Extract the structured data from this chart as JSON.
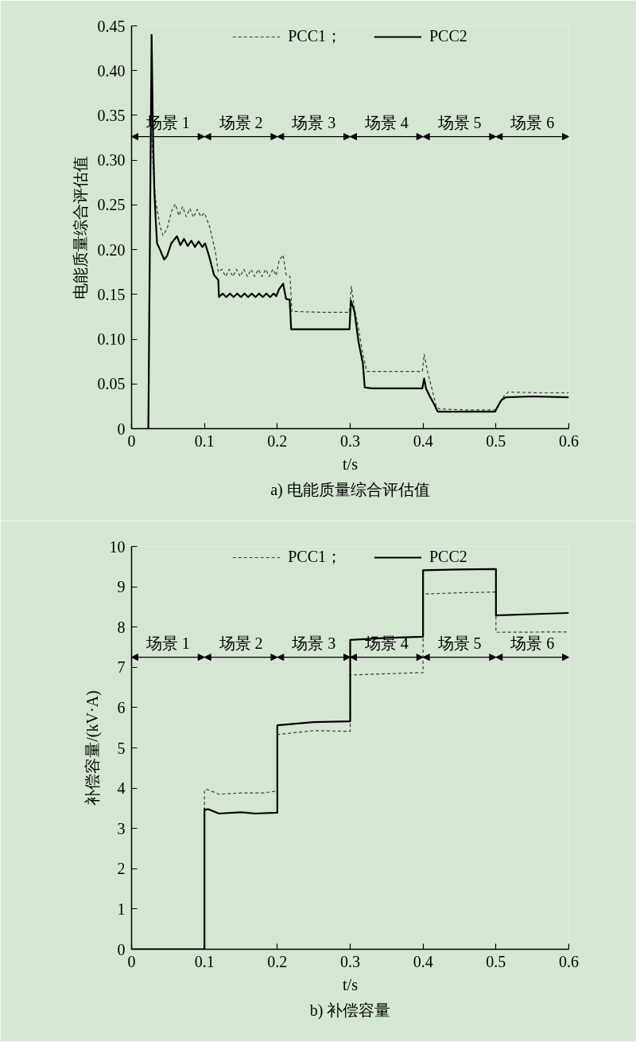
{
  "chart_data": [
    {
      "type": "line",
      "title": "a) 电能质量综合评估值",
      "xlabel": "t/s",
      "ylabel": "电能质量综合评估值",
      "legend": "top",
      "xlim": [
        0,
        0.6
      ],
      "xticks": [
        0,
        0.1,
        0.2,
        0.3,
        0.4,
        0.5,
        0.6
      ],
      "ylim": [
        0,
        0.45
      ],
      "yticks": [
        0,
        0.05,
        {
          "value": 0.1,
          "label": "0.10"
        },
        0.15,
        {
          "value": 0.2,
          "label": "0.20"
        },
        0.25,
        {
          "value": 0.3,
          "label": "0.30"
        },
        0.35,
        {
          "value": 0.4,
          "label": "0.40"
        },
        0.45
      ],
      "series": [
        {
          "name": "PCC1；",
          "color": "#3a3a3a",
          "line_style": "dashed",
          "x": [
            0.0275,
            0.029,
            0.033,
            0.039,
            0.043,
            0.0487,
            0.0545,
            0.06,
            0.065,
            0.07,
            0.075,
            0.08,
            0.085,
            0.09,
            0.095,
            0.1,
            0.107,
            0.115,
            0.119,
            0.124,
            0.129,
            0.134,
            0.139,
            0.144,
            0.149,
            0.154,
            0.159,
            0.164,
            0.169,
            0.174,
            0.179,
            0.184,
            0.189,
            0.194,
            0.1985,
            0.2025,
            0.208,
            0.212,
            0.2175,
            0.22,
            0.26,
            0.299,
            0.3015,
            0.306,
            0.3116,
            0.3174,
            0.323,
            0.36,
            0.399,
            0.4015,
            0.406,
            0.412,
            0.4177,
            0.422,
            0.46,
            0.5,
            0.5055,
            0.5115,
            0.517,
            0.56,
            0.6
          ],
          "values": [
            0.33,
            0.3,
            0.255,
            0.226,
            0.216,
            0.223,
            0.242,
            0.251,
            0.238,
            0.248,
            0.237,
            0.246,
            0.236,
            0.245,
            0.237,
            0.241,
            0.226,
            0.198,
            0.175,
            0.178,
            0.17,
            0.178,
            0.17,
            0.178,
            0.17,
            0.178,
            0.17,
            0.178,
            0.17,
            0.178,
            0.17,
            0.178,
            0.17,
            0.178,
            0.171,
            0.188,
            0.194,
            0.172,
            0.17,
            0.131,
            0.13,
            0.13,
            0.159,
            0.134,
            0.111,
            0.083,
            0.064,
            0.064,
            0.064,
            0.083,
            0.064,
            0.045,
            0.026,
            0.022,
            0.021,
            0.021,
            0.029,
            0.037,
            0.041,
            0.04,
            0.04
          ]
        },
        {
          "name": "PCC2",
          "color": "#000000",
          "line_style": "solid",
          "x": [
            0.023,
            0.0275,
            0.0292,
            0.0312,
            0.0332,
            0.035,
            0.039,
            0.0447,
            0.0487,
            0.0545,
            0.0623,
            0.067,
            0.072,
            0.077,
            0.082,
            0.087,
            0.092,
            0.097,
            0.101,
            0.107,
            0.113,
            0.119,
            0.12,
            0.125,
            0.13,
            0.135,
            0.14,
            0.145,
            0.15,
            0.155,
            0.16,
            0.165,
            0.17,
            0.175,
            0.18,
            0.185,
            0.19,
            0.195,
            0.1985,
            0.2025,
            0.208,
            0.212,
            0.217,
            0.219,
            0.25,
            0.299,
            0.301,
            0.3058,
            0.3116,
            0.3174,
            0.32,
            0.33,
            0.36,
            0.399,
            0.4015,
            0.404,
            0.41,
            0.416,
            0.42,
            0.45,
            0.499,
            0.5,
            0.5075,
            0.5135,
            0.55,
            0.6
          ],
          "values": [
            0,
            0.44,
            0.34,
            0.267,
            0.232,
            0.207,
            0.2,
            0.189,
            0.193,
            0.207,
            0.215,
            0.205,
            0.212,
            0.204,
            0.21,
            0.203,
            0.209,
            0.203,
            0.207,
            0.191,
            0.172,
            0.166,
            0.147,
            0.151,
            0.147,
            0.151,
            0.147,
            0.151,
            0.147,
            0.151,
            0.147,
            0.151,
            0.147,
            0.151,
            0.147,
            0.151,
            0.147,
            0.151,
            0.148,
            0.156,
            0.162,
            0.145,
            0.144,
            0.111,
            0.111,
            0.111,
            0.143,
            0.131,
            0.096,
            0.073,
            0.046,
            0.045,
            0.045,
            0.045,
            0.056,
            0.045,
            0.035,
            0.026,
            0.019,
            0.019,
            0.019,
            0.021,
            0.032,
            0.035,
            0.036,
            0.035
          ]
        }
      ],
      "annotations": [
        "场景 1",
        "场景 2",
        "场景 3",
        "场景 4",
        "场景 5",
        "场景 6"
      ]
    },
    {
      "type": "line",
      "title": "b) 补偿容量",
      "xlabel": "t/s",
      "ylabel": "补偿容量/(kV·A)",
      "legend": "top",
      "xlim": [
        0,
        0.6
      ],
      "xticks": [
        0,
        0.1,
        0.2,
        0.3,
        0.4,
        0.5,
        0.6
      ],
      "ylim": [
        0,
        10
      ],
      "yticks": [
        0,
        1,
        2,
        3,
        4,
        5,
        6,
        7,
        8,
        9,
        10
      ],
      "series": [
        {
          "name": "PCC1；",
          "color": "#3a3a3a",
          "line_style": "dashed",
          "x": [
            0,
            0.1,
            0.1,
            0.1035,
            0.12,
            0.15,
            0.18,
            0.2,
            0.2,
            0.25,
            0.3,
            0.3,
            0.35,
            0.4,
            0.4,
            0.45,
            0.5,
            0.5,
            0.6
          ],
          "values": [
            0,
            0,
            3.95,
            3.97,
            3.85,
            3.88,
            3.88,
            3.93,
            5.33,
            5.43,
            5.41,
            6.81,
            6.84,
            6.87,
            8.82,
            8.85,
            8.87,
            7.87,
            7.88
          ]
        },
        {
          "name": "PCC2",
          "color": "#000000",
          "line_style": "solid",
          "x": [
            0,
            0.1,
            0.1,
            0.1015,
            0.105,
            0.12,
            0.15,
            0.17,
            0.2,
            0.2,
            0.25,
            0.3,
            0.3,
            0.35,
            0.4,
            0.4,
            0.45,
            0.5,
            0.5,
            0.55,
            0.6
          ],
          "values": [
            0,
            0,
            3.49,
            3.46,
            3.48,
            3.37,
            3.4,
            3.37,
            3.39,
            5.56,
            5.64,
            5.66,
            7.68,
            7.73,
            7.76,
            9.41,
            9.43,
            9.44,
            8.29,
            8.32,
            8.35
          ]
        }
      ],
      "annotations": [
        "场景 1",
        "场景 2",
        "场景 3",
        "场景 4",
        "场景 5",
        "场景 6"
      ]
    }
  ]
}
